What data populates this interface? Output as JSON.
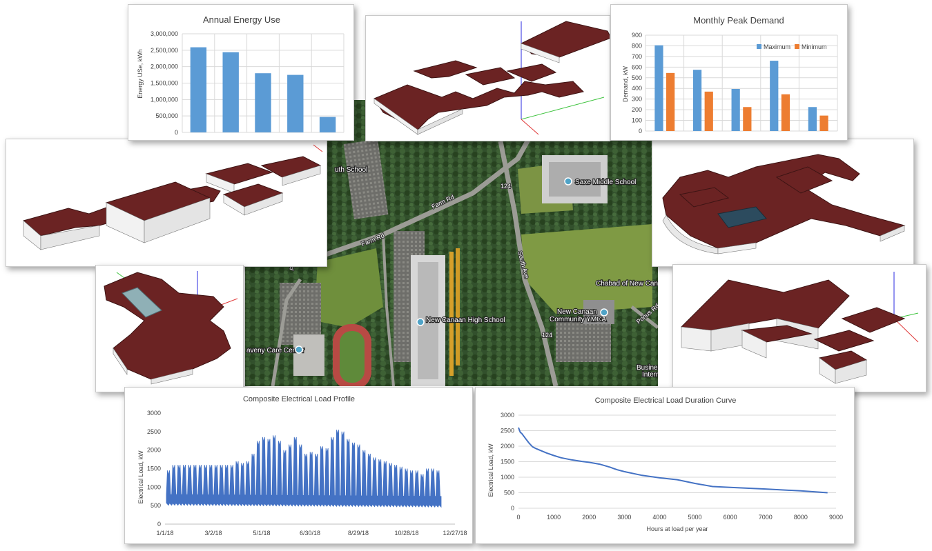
{
  "map": {
    "labels": {
      "high_school": "New Canaan High School",
      "middle_school": "Saxe Middle School",
      "south_school": "uth School",
      "chabad": "Chabad of New Canaan",
      "ymca_line1": "New Canaan",
      "ymca_line2": "Community YMCA",
      "care_center": "aveny Care Center",
      "business_line1": "Business Book",
      "business_line2": "International",
      "farm_rd": "Farm Rd",
      "south_ave": "South Ave",
      "route": "124",
      "ponus_rd": "Ponus Rd",
      "farm_rd_2": "Farm Rd",
      "farm_rd_3": "Farm Rd"
    }
  },
  "chart_data": [
    {
      "id": "annual_energy",
      "type": "bar",
      "title": "Annual Energy Use",
      "xlabel": "",
      "ylabel": "Energy USe, kWh",
      "categories": [
        "",
        "",
        "",
        "",
        ""
      ],
      "values": [
        2590000,
        2440000,
        1800000,
        1750000,
        470000
      ],
      "ylim": [
        0,
        3000000
      ],
      "yticks": [
        "0",
        "500,000",
        "1,000,000",
        "1,500,000",
        "2,000,000",
        "2,500,000",
        "3,000,000"
      ],
      "color": "#5b9bd5",
      "grid": true
    },
    {
      "id": "monthly_peak",
      "type": "bar",
      "title": "Monthly Peak Demand",
      "xlabel": "",
      "ylabel": "Demand, kW",
      "categories": [
        "",
        "",
        "",
        "",
        ""
      ],
      "series": [
        {
          "name": "Maximum",
          "values": [
            805,
            575,
            395,
            660,
            225
          ],
          "color": "#5b9bd5"
        },
        {
          "name": "Minimum",
          "values": [
            545,
            370,
            225,
            345,
            145
          ],
          "color": "#ed7d31"
        }
      ],
      "ylim": [
        0,
        900
      ],
      "yticks": [
        "0",
        "100",
        "200",
        "300",
        "400",
        "500",
        "600",
        "700",
        "800",
        "900"
      ],
      "legend": "top-right",
      "grid": true
    },
    {
      "id": "load_profile",
      "type": "area",
      "title": "Composite Electrical Load Profile",
      "xlabel": "",
      "ylabel": "Electrical Load, kW",
      "x_dates": [
        "1/1/18",
        "12/31/18"
      ],
      "xticks": [
        "1/1/18",
        "3/2/18",
        "5/1/18",
        "6/30/18",
        "8/29/18",
        "10/28/18",
        "12/27/18"
      ],
      "yticks": [
        "0",
        "500",
        "1000",
        "1500",
        "2000",
        "2500",
        "3000"
      ],
      "ylim": [
        0,
        3000
      ],
      "weekly_peak_kw": [
        1450,
        1600,
        1600,
        1600,
        1600,
        1600,
        1600,
        1600,
        1600,
        1600,
        1600,
        1600,
        1600,
        1700,
        1650,
        1700,
        1900,
        2250,
        2350,
        2300,
        2400,
        2250,
        2000,
        2150,
        2350,
        2150,
        1900,
        1950,
        1900,
        2100,
        2050,
        2350,
        2550,
        2500,
        2300,
        2200,
        2150,
        2000,
        1900,
        1800,
        1750,
        1700,
        1650,
        1600,
        1550,
        1500,
        1450,
        1450,
        1350,
        1500,
        1500,
        1450
      ],
      "base_load_kw": [
        650,
        600
      ],
      "color": "#4472c4",
      "grid": false
    },
    {
      "id": "load_duration",
      "type": "line",
      "title": "Composite Electrical Load Duration Curve",
      "xlabel": "Hours at load per year",
      "ylabel": "Electrical Load, kW",
      "x": [
        0,
        50,
        100,
        200,
        300,
        400,
        500,
        800,
        1000,
        1200,
        1500,
        1800,
        2000,
        2300,
        2600,
        2800,
        3000,
        3500,
        4000,
        4500,
        5000,
        5500,
        6000,
        7000,
        8000,
        8760
      ],
      "y": [
        2600,
        2450,
        2400,
        2250,
        2100,
        1980,
        1920,
        1780,
        1700,
        1630,
        1560,
        1510,
        1480,
        1420,
        1320,
        1240,
        1180,
        1060,
        980,
        920,
        800,
        700,
        670,
        620,
        560,
        500
      ],
      "xlim": [
        0,
        9000
      ],
      "ylim": [
        0,
        3000
      ],
      "xticks": [
        "0",
        "1000",
        "2000",
        "3000",
        "4000",
        "5000",
        "6000",
        "7000",
        "8000",
        "9000"
      ],
      "yticks": [
        "0",
        "500",
        "1000",
        "1500",
        "2000",
        "2500",
        "3000"
      ],
      "color": "#4472c4",
      "grid": true
    }
  ],
  "colors": {
    "roof": "#6b2323",
    "roof_edge": "#3d1414",
    "wall": "#f2f2f2"
  }
}
